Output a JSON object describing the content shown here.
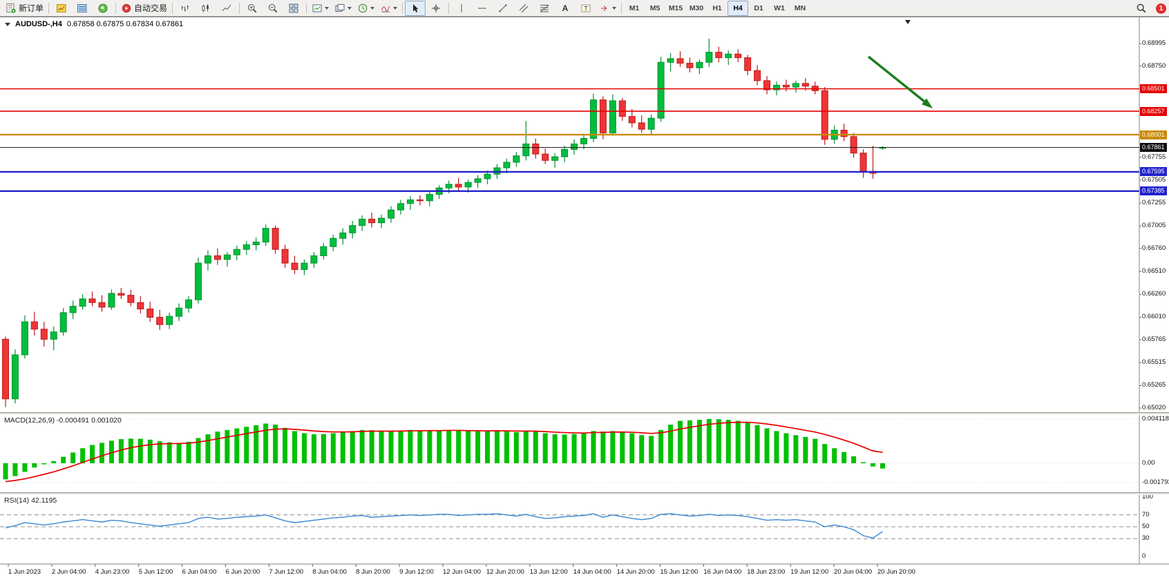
{
  "toolbar": {
    "groups": [
      {
        "buttons": [
          {
            "name": "new-order-button",
            "icon": "new-order",
            "label": "新订单"
          }
        ]
      },
      {
        "buttons": [
          {
            "name": "market-watch-button",
            "icon": "market-watch"
          },
          {
            "name": "data-window-button",
            "icon": "data-window"
          },
          {
            "name": "navigator-button",
            "icon": "navigator"
          }
        ]
      },
      {
        "buttons": [
          {
            "name": "auto-trading-button",
            "icon": "auto-trading",
            "label": "自动交易"
          }
        ]
      },
      {
        "buttons": [
          {
            "name": "bar-chart-button",
            "icon": "bar-type"
          },
          {
            "name": "candlestick-chart-button",
            "icon": "candle-type"
          },
          {
            "name": "line-chart-button",
            "icon": "line-type"
          }
        ]
      },
      {
        "buttons": [
          {
            "name": "zoom-in-button",
            "icon": "zoom-in"
          },
          {
            "name": "zoom-out-button",
            "icon": "zoom-out"
          },
          {
            "name": "tile-windows-button",
            "icon": "tile-windows"
          }
        ]
      },
      {
        "buttons": [
          {
            "name": "new-chart-button",
            "icon": "new-chart",
            "dropdown": true
          },
          {
            "name": "profiles-button",
            "icon": "profiles",
            "dropdown": true
          },
          {
            "name": "periods-button",
            "icon": "clock",
            "dropdown": true
          },
          {
            "name": "indicators-button",
            "icon": "indicators",
            "dropdown": true
          }
        ]
      },
      {
        "buttons": [
          {
            "name": "cursor-button",
            "icon": "cursor",
            "pressed": true
          },
          {
            "name": "crosshair-button",
            "icon": "crosshair"
          }
        ]
      },
      {
        "buttons": [
          {
            "name": "vertical-line-button",
            "icon": "vline"
          },
          {
            "name": "horizontal-line-button",
            "icon": "hline"
          },
          {
            "name": "trendline-button",
            "icon": "trendline"
          },
          {
            "name": "channel-button",
            "icon": "channel"
          },
          {
            "name": "fibonacci-button",
            "icon": "fibonacci"
          },
          {
            "name": "text-button",
            "icon": "text-a"
          },
          {
            "name": "label-button",
            "icon": "text-label"
          },
          {
            "name": "arrows-button",
            "icon": "arrow-shape",
            "dropdown": true
          }
        ]
      },
      {
        "buttons": [
          {
            "name": "tf-m1-button",
            "tf": "M1"
          },
          {
            "name": "tf-m5-button",
            "tf": "M5"
          },
          {
            "name": "tf-m15-button",
            "tf": "M15"
          },
          {
            "name": "tf-m30-button",
            "tf": "M30"
          },
          {
            "name": "tf-h1-button",
            "tf": "H1"
          },
          {
            "name": "tf-h4-button",
            "tf": "H4",
            "pressed": true
          },
          {
            "name": "tf-d1-button",
            "tf": "D1"
          },
          {
            "name": "tf-w1-button",
            "tf": "W1"
          },
          {
            "name": "tf-mn-button",
            "tf": "MN"
          }
        ]
      }
    ],
    "badge": "1"
  },
  "chart_data": {
    "type": "candlestick",
    "symbol": "AUDUSD-,H4",
    "ohlc_text": "0.67858  0.67875  0.67834  0.67861",
    "price_axis": [
      "0.68995",
      "0.68750",
      "0.67755",
      "0.67505",
      "0.67255",
      "0.67005",
      "0.66760",
      "0.66510",
      "0.66260",
      "0.66010",
      "0.65765",
      "0.65515",
      "0.65265",
      "0.65020"
    ],
    "hlines": [
      {
        "price": 0.68501,
        "label": "0.68501",
        "color": "#e60000",
        "width": 1.6
      },
      {
        "price": 0.68257,
        "label": "0.68257",
        "color": "#e60000",
        "width": 1.6
      },
      {
        "price": 0.68001,
        "label": "0.68001",
        "color": "#c98a00",
        "width": 2.4
      },
      {
        "price": 0.67595,
        "label": "0.67595",
        "color": "#2222cc",
        "width": 2.4
      },
      {
        "price": 0.67385,
        "label": "0.67385",
        "color": "#2222cc",
        "width": 2.4
      }
    ],
    "current_price": {
      "price": 0.67861,
      "label": "0.67861",
      "color": "#111111",
      "width": 1
    },
    "colors": {
      "up": "#00be3c",
      "up_border": "#089033",
      "down": "#ef3535",
      "down_border": "#bc1b1b"
    },
    "annotation_arrow": {
      "color": "#1e7d1e"
    },
    "candles": [
      [
        0.6577,
        0.658,
        0.6503,
        0.6512
      ],
      [
        0.6512,
        0.6566,
        0.6507,
        0.656
      ],
      [
        0.656,
        0.6603,
        0.6556,
        0.6596
      ],
      [
        0.6596,
        0.6607,
        0.6581,
        0.6588
      ],
      [
        0.6588,
        0.6596,
        0.6569,
        0.6577
      ],
      [
        0.6577,
        0.6591,
        0.6565,
        0.6585
      ],
      [
        0.6585,
        0.6611,
        0.6581,
        0.6606
      ],
      [
        0.6606,
        0.6619,
        0.6599,
        0.6613
      ],
      [
        0.6613,
        0.6626,
        0.6609,
        0.6621
      ],
      [
        0.6621,
        0.6629,
        0.6613,
        0.6617
      ],
      [
        0.6617,
        0.6625,
        0.6607,
        0.6612
      ],
      [
        0.6612,
        0.6631,
        0.6609,
        0.6627
      ],
      [
        0.6627,
        0.6633,
        0.6621,
        0.6625
      ],
      [
        0.6625,
        0.6631,
        0.6613,
        0.6617
      ],
      [
        0.6617,
        0.6624,
        0.6605,
        0.661
      ],
      [
        0.661,
        0.6618,
        0.6596,
        0.6601
      ],
      [
        0.6601,
        0.6609,
        0.6587,
        0.6593
      ],
      [
        0.6593,
        0.6606,
        0.6588,
        0.6602
      ],
      [
        0.6602,
        0.6616,
        0.6597,
        0.6611
      ],
      [
        0.6611,
        0.6624,
        0.6606,
        0.662
      ],
      [
        0.662,
        0.6666,
        0.6616,
        0.666
      ],
      [
        0.666,
        0.6674,
        0.6652,
        0.6668
      ],
      [
        0.6668,
        0.6676,
        0.6658,
        0.6664
      ],
      [
        0.6664,
        0.6672,
        0.6656,
        0.6669
      ],
      [
        0.6669,
        0.6679,
        0.6663,
        0.6675
      ],
      [
        0.6675,
        0.6684,
        0.6669,
        0.668
      ],
      [
        0.668,
        0.6688,
        0.6674,
        0.6683
      ],
      [
        0.6683,
        0.6702,
        0.6679,
        0.6698
      ],
      [
        0.6698,
        0.6701,
        0.667,
        0.6675
      ],
      [
        0.6675,
        0.668,
        0.6655,
        0.666
      ],
      [
        0.666,
        0.6668,
        0.6648,
        0.6653
      ],
      [
        0.6653,
        0.6664,
        0.6647,
        0.666
      ],
      [
        0.666,
        0.6672,
        0.6655,
        0.6668
      ],
      [
        0.6668,
        0.6682,
        0.6664,
        0.6678
      ],
      [
        0.6678,
        0.6691,
        0.6673,
        0.6687
      ],
      [
        0.6687,
        0.6698,
        0.668,
        0.6693
      ],
      [
        0.6693,
        0.6706,
        0.6687,
        0.6701
      ],
      [
        0.6701,
        0.6712,
        0.6695,
        0.6708
      ],
      [
        0.6708,
        0.6715,
        0.6699,
        0.6704
      ],
      [
        0.6704,
        0.6713,
        0.6698,
        0.6709
      ],
      [
        0.6709,
        0.6722,
        0.6704,
        0.6718
      ],
      [
        0.6718,
        0.6729,
        0.6713,
        0.6725
      ],
      [
        0.6725,
        0.6733,
        0.6718,
        0.6729
      ],
      [
        0.6729,
        0.6734,
        0.6723,
        0.6728
      ],
      [
        0.6728,
        0.6738,
        0.6722,
        0.6735
      ],
      [
        0.6735,
        0.6745,
        0.673,
        0.6742
      ],
      [
        0.6742,
        0.675,
        0.6736,
        0.6746
      ],
      [
        0.6746,
        0.6753,
        0.6739,
        0.6743
      ],
      [
        0.6743,
        0.6751,
        0.6737,
        0.6748
      ],
      [
        0.6748,
        0.6756,
        0.6742,
        0.6752
      ],
      [
        0.6752,
        0.6761,
        0.6746,
        0.6757
      ],
      [
        0.6757,
        0.6768,
        0.6752,
        0.6764
      ],
      [
        0.6764,
        0.6774,
        0.6758,
        0.677
      ],
      [
        0.677,
        0.6781,
        0.6765,
        0.6777
      ],
      [
        0.6777,
        0.6815,
        0.6772,
        0.679
      ],
      [
        0.679,
        0.6796,
        0.6774,
        0.6779
      ],
      [
        0.6779,
        0.6785,
        0.6768,
        0.6772
      ],
      [
        0.6772,
        0.678,
        0.6764,
        0.6776
      ],
      [
        0.6776,
        0.6788,
        0.677,
        0.6784
      ],
      [
        0.6784,
        0.6795,
        0.6778,
        0.679
      ],
      [
        0.679,
        0.6801,
        0.6784,
        0.6796
      ],
      [
        0.6796,
        0.6845,
        0.6792,
        0.6838
      ],
      [
        0.6838,
        0.6842,
        0.6795,
        0.6802
      ],
      [
        0.6802,
        0.6844,
        0.6799,
        0.6837
      ],
      [
        0.6837,
        0.684,
        0.6815,
        0.682
      ],
      [
        0.682,
        0.6828,
        0.6808,
        0.6813
      ],
      [
        0.6813,
        0.6821,
        0.6802,
        0.6806
      ],
      [
        0.6806,
        0.6822,
        0.68,
        0.6818
      ],
      [
        0.6818,
        0.6885,
        0.6814,
        0.6879
      ],
      [
        0.6879,
        0.6889,
        0.6869,
        0.6883
      ],
      [
        0.6883,
        0.6891,
        0.6874,
        0.6878
      ],
      [
        0.6878,
        0.6884,
        0.6868,
        0.6873
      ],
      [
        0.6873,
        0.6882,
        0.6866,
        0.6879
      ],
      [
        0.6879,
        0.6905,
        0.6874,
        0.689
      ],
      [
        0.689,
        0.6896,
        0.6879,
        0.6884
      ],
      [
        0.6884,
        0.6892,
        0.6876,
        0.6888
      ],
      [
        0.6888,
        0.6893,
        0.6879,
        0.6884
      ],
      [
        0.6884,
        0.6887,
        0.6865,
        0.687
      ],
      [
        0.687,
        0.6876,
        0.6854,
        0.6859
      ],
      [
        0.6859,
        0.6864,
        0.6844,
        0.6849
      ],
      [
        0.6849,
        0.6858,
        0.6843,
        0.6854
      ],
      [
        0.6854,
        0.686,
        0.6847,
        0.6852
      ],
      [
        0.6852,
        0.6859,
        0.6846,
        0.6856
      ],
      [
        0.6856,
        0.6862,
        0.6848,
        0.6853
      ],
      [
        0.6853,
        0.6858,
        0.6844,
        0.6848
      ],
      [
        0.6848,
        0.6852,
        0.6789,
        0.6795
      ],
      [
        0.6795,
        0.681,
        0.679,
        0.6805
      ],
      [
        0.6805,
        0.6812,
        0.6793,
        0.6798
      ],
      [
        0.6798,
        0.6802,
        0.6775,
        0.678
      ],
      [
        0.678,
        0.6784,
        0.6753,
        0.676
      ],
      [
        0.676,
        0.6788,
        0.6752,
        0.6758
      ],
      [
        0.67858,
        0.67875,
        0.67834,
        0.67861
      ]
    ],
    "macd": {
      "label": "MACD(12,26,9) -0.000491 0.001020",
      "hist_color": "#00c000",
      "signal_color": "#e60000",
      "axis_labels": [
        {
          "v": 0.004118,
          "t": "0.004118"
        },
        {
          "v": 0,
          "t": "0.00"
        },
        {
          "v": -0.001793,
          "t": "-0.001793"
        }
      ],
      "histogram": [
        -0.0015,
        -0.0012,
        -0.0008,
        -0.0004,
        -0.0001,
        0.0002,
        0.0006,
        0.001,
        0.0014,
        0.0017,
        0.0019,
        0.0021,
        0.00225,
        0.0023,
        0.00228,
        0.0022,
        0.00205,
        0.00195,
        0.0019,
        0.002,
        0.00235,
        0.0027,
        0.00295,
        0.0031,
        0.00325,
        0.0034,
        0.00355,
        0.0037,
        0.0036,
        0.0033,
        0.003,
        0.0028,
        0.0027,
        0.00272,
        0.0028,
        0.0029,
        0.003,
        0.0031,
        0.00308,
        0.003,
        0.003,
        0.00305,
        0.0031,
        0.00308,
        0.00305,
        0.00308,
        0.0031,
        0.00305,
        0.003,
        0.00298,
        0.003,
        0.00305,
        0.003,
        0.0029,
        0.003,
        0.00295,
        0.0028,
        0.0027,
        0.00268,
        0.00272,
        0.0028,
        0.003,
        0.00295,
        0.003,
        0.00295,
        0.0028,
        0.00262,
        0.00255,
        0.0031,
        0.0036,
        0.00395,
        0.004,
        0.00405,
        0.00412,
        0.0041,
        0.00405,
        0.00395,
        0.0038,
        0.00355,
        0.00325,
        0.003,
        0.0028,
        0.00262,
        0.00245,
        0.00228,
        0.0018,
        0.0014,
        0.00105,
        0.00065,
        0.0001,
        -0.0003,
        -0.000491
      ],
      "signal": [
        -0.0017,
        -0.0016,
        -0.00145,
        -0.00125,
        -0.00103,
        -0.0008,
        -0.00053,
        -0.00024,
        8e-05,
        0.0004,
        0.0007,
        0.00098,
        0.00123,
        0.00145,
        0.00161,
        0.00173,
        0.0018,
        0.00183,
        0.00184,
        0.00187,
        0.00197,
        0.00211,
        0.00228,
        0.00244,
        0.0026,
        0.00276,
        0.00292,
        0.00307,
        0.00318,
        0.0032,
        0.00316,
        0.00309,
        0.00301,
        0.00295,
        0.00292,
        0.00292,
        0.00293,
        0.00297,
        0.00299,
        0.00299,
        0.00299,
        0.003,
        0.00302,
        0.00303,
        0.00304,
        0.00304,
        0.00306,
        0.00306,
        0.00304,
        0.00303,
        0.00302,
        0.00303,
        0.00302,
        0.003,
        0.003,
        0.00299,
        0.00295,
        0.0029,
        0.00286,
        0.00283,
        0.00282,
        0.00286,
        0.00288,
        0.0029,
        0.00291,
        0.00289,
        0.00284,
        0.00278,
        0.00284,
        0.00299,
        0.00319,
        0.00335,
        0.00349,
        0.00363,
        0.00372,
        0.00379,
        0.00382,
        0.00382,
        0.00376,
        0.00366,
        0.00353,
        0.00338,
        0.00323,
        0.00307,
        0.00291,
        0.00269,
        0.00243,
        0.00216,
        0.00186,
        0.00151,
        0.00115,
        0.00102
      ]
    },
    "rsi": {
      "label": "RSI(14) 42.1195",
      "color": "#3a87d2",
      "levels": [
        70,
        50,
        30
      ],
      "axis_labels": [
        {
          "v": 100,
          "t": "100"
        },
        {
          "v": 70,
          "t": "70"
        },
        {
          "v": 50,
          "t": "50"
        },
        {
          "v": 30,
          "t": "30"
        },
        {
          "v": 0,
          "t": "0"
        }
      ],
      "values": [
        48,
        52,
        57,
        55,
        53,
        55,
        58,
        60,
        62,
        60,
        58,
        61,
        60,
        57,
        55,
        53,
        51,
        53,
        55,
        57,
        64,
        66,
        63,
        64,
        66,
        67,
        68,
        70,
        65,
        60,
        57,
        59,
        61,
        63,
        65,
        66,
        68,
        69,
        66,
        67,
        68,
        69,
        70,
        69,
        70,
        71,
        71,
        69,
        70,
        71,
        71,
        72,
        70,
        68,
        71,
        67,
        64,
        65,
        67,
        68,
        69,
        72,
        66,
        70,
        67,
        64,
        62,
        64,
        71,
        72,
        70,
        68,
        69,
        71,
        69,
        70,
        69,
        67,
        64,
        61,
        62,
        61,
        62,
        60,
        58,
        50,
        53,
        50,
        45,
        35,
        31,
        42.1
      ]
    },
    "x_labels": [
      "1 Jun 2023",
      "2 Jun 04:00",
      "4 Jun 23:00",
      "5 Jun 12:00",
      "6 Jun 04:00",
      "6 Jun 20:00",
      "7 Jun 12:00",
      "8 Jun 04:00",
      "8 Jun 20:00",
      "9 Jun 12:00",
      "12 Jun 04:00",
      "12 Jun 20:00",
      "13 Jun 12:00",
      "14 Jun 04:00",
      "14 Jun 20:00",
      "15 Jun 12:00",
      "16 Jun 04:00",
      "18 Jun 23:00",
      "19 Jun 12:00",
      "20 Jun 04:00",
      "20 Jun 20:00"
    ]
  }
}
